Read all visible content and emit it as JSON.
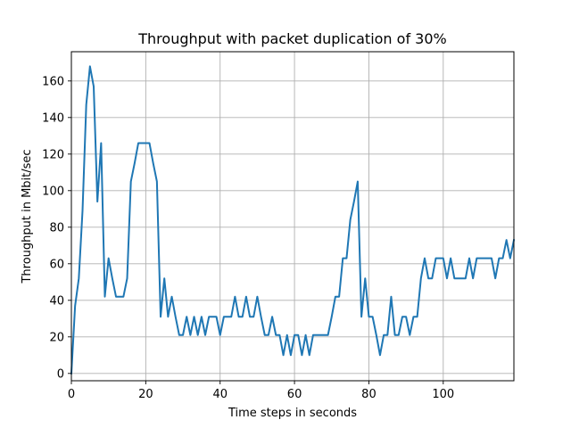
{
  "chart_data": {
    "type": "line",
    "title": "Throughput with packet duplication of 30%",
    "xlabel": "Time steps in seconds",
    "ylabel": "Throughput in Mbit/sec",
    "xlim": [
      0,
      119
    ],
    "ylim": [
      -4,
      176
    ],
    "xticks": [
      0,
      20,
      40,
      60,
      80,
      100
    ],
    "yticks": [
      0,
      20,
      40,
      60,
      80,
      100,
      120,
      140,
      160
    ],
    "grid": true,
    "line_color": "#1f77b4",
    "series": [
      {
        "x": [
          0,
          1,
          2,
          3,
          4,
          5,
          6,
          7,
          8,
          9,
          10,
          11,
          12,
          13,
          14,
          15,
          16,
          17,
          18,
          19,
          20,
          21,
          22,
          23,
          24,
          25,
          26,
          27,
          28,
          29,
          30,
          31,
          32,
          33,
          34,
          35,
          36,
          37,
          38,
          39,
          40,
          41,
          42,
          43,
          44,
          45,
          46,
          47,
          48,
          49,
          50,
          51,
          52,
          53,
          54,
          55,
          56,
          57,
          58,
          59,
          60,
          61,
          62,
          63,
          64,
          65,
          66,
          67,
          68,
          69,
          70,
          71,
          72,
          73,
          74,
          75,
          76,
          77,
          78,
          79,
          80,
          81,
          82,
          83,
          84,
          85,
          86,
          87,
          88,
          89,
          90,
          91,
          92,
          93,
          94,
          95,
          96,
          97,
          98,
          99,
          100,
          101,
          102,
          103,
          104,
          105,
          106,
          107,
          108,
          109,
          110,
          111,
          112,
          113,
          114,
          115,
          116,
          117,
          118,
          119
        ],
        "values": [
          0,
          37,
          52,
          89,
          147,
          168,
          157,
          94,
          126,
          42,
          63,
          52,
          42,
          42,
          42,
          52,
          105,
          115,
          126,
          126,
          126,
          126,
          115,
          105,
          31,
          52,
          31,
          42,
          31,
          21,
          21,
          31,
          21,
          31,
          21,
          31,
          21,
          31,
          31,
          31,
          21,
          31,
          31,
          31,
          42,
          31,
          31,
          42,
          31,
          31,
          42,
          31,
          21,
          21,
          31,
          21,
          21,
          10,
          21,
          10,
          21,
          21,
          10,
          21,
          10,
          21,
          21,
          21,
          21,
          21,
          31,
          42,
          42,
          63,
          63,
          84,
          94,
          105,
          31,
          52,
          31,
          31,
          21,
          10,
          21,
          21,
          42,
          21,
          21,
          31,
          31,
          21,
          31,
          31,
          52,
          63,
          52,
          52,
          63,
          63,
          63,
          52,
          63,
          52,
          52,
          52,
          52,
          63,
          52,
          63,
          63,
          63,
          63,
          63,
          52,
          63,
          63,
          73,
          63,
          73
        ]
      }
    ]
  }
}
